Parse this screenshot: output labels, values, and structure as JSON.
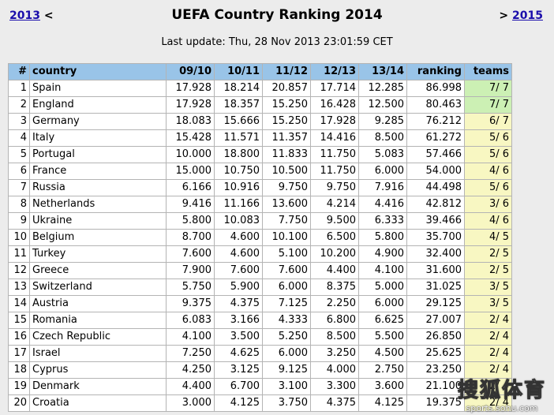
{
  "nav": {
    "prev_year": "2013",
    "prev_arrow": "<",
    "next_arrow": ">",
    "next_year": "2015"
  },
  "title": "UEFA Country Ranking 2014",
  "last_update": "Last update: Thu, 28 Nov 2013 23:01:59 CET",
  "table": {
    "headers": [
      "#",
      "country",
      "09/10",
      "10/11",
      "11/12",
      "12/13",
      "13/14",
      "ranking",
      "teams"
    ],
    "rows": [
      [
        "1",
        "Spain",
        "17.928",
        "18.214",
        "20.857",
        "17.714",
        "12.285",
        "86.998",
        "7/ 7"
      ],
      [
        "2",
        "England",
        "17.928",
        "18.357",
        "15.250",
        "16.428",
        "12.500",
        "80.463",
        "7/ 7"
      ],
      [
        "3",
        "Germany",
        "18.083",
        "15.666",
        "15.250",
        "17.928",
        "9.285",
        "76.212",
        "6/ 7"
      ],
      [
        "4",
        "Italy",
        "15.428",
        "11.571",
        "11.357",
        "14.416",
        "8.500",
        "61.272",
        "5/ 6"
      ],
      [
        "5",
        "Portugal",
        "10.000",
        "18.800",
        "11.833",
        "11.750",
        "5.083",
        "57.466",
        "5/ 6"
      ],
      [
        "6",
        "France",
        "15.000",
        "10.750",
        "10.500",
        "11.750",
        "6.000",
        "54.000",
        "4/ 6"
      ],
      [
        "7",
        "Russia",
        "6.166",
        "10.916",
        "9.750",
        "9.750",
        "7.916",
        "44.498",
        "5/ 6"
      ],
      [
        "8",
        "Netherlands",
        "9.416",
        "11.166",
        "13.600",
        "4.214",
        "4.416",
        "42.812",
        "3/ 6"
      ],
      [
        "9",
        "Ukraine",
        "5.800",
        "10.083",
        "7.750",
        "9.500",
        "6.333",
        "39.466",
        "4/ 6"
      ],
      [
        "10",
        "Belgium",
        "8.700",
        "4.600",
        "10.100",
        "6.500",
        "5.800",
        "35.700",
        "4/ 5"
      ],
      [
        "11",
        "Turkey",
        "7.600",
        "4.600",
        "5.100",
        "10.200",
        "4.900",
        "32.400",
        "2/ 5"
      ],
      [
        "12",
        "Greece",
        "7.900",
        "7.600",
        "7.600",
        "4.400",
        "4.100",
        "31.600",
        "2/ 5"
      ],
      [
        "13",
        "Switzerland",
        "5.750",
        "5.900",
        "6.000",
        "8.375",
        "5.000",
        "31.025",
        "3/ 5"
      ],
      [
        "14",
        "Austria",
        "9.375",
        "4.375",
        "7.125",
        "2.250",
        "6.000",
        "29.125",
        "3/ 5"
      ],
      [
        "15",
        "Romania",
        "6.083",
        "3.166",
        "4.333",
        "6.800",
        "6.625",
        "27.007",
        "2/ 4"
      ],
      [
        "16",
        "Czech Republic",
        "4.100",
        "3.500",
        "5.250",
        "8.500",
        "5.500",
        "26.850",
        "2/ 4"
      ],
      [
        "17",
        "Israel",
        "7.250",
        "4.625",
        "6.000",
        "3.250",
        "4.500",
        "25.625",
        "2/ 4"
      ],
      [
        "18",
        "Cyprus",
        "4.250",
        "3.125",
        "9.125",
        "4.000",
        "2.750",
        "23.250",
        "2/ 4"
      ],
      [
        "19",
        "Denmark",
        "4.400",
        "6.700",
        "3.100",
        "3.300",
        "3.600",
        "21.100",
        "2/ 4"
      ],
      [
        "20",
        "Croatia",
        "3.000",
        "4.125",
        "3.750",
        "4.375",
        "4.125",
        "19.375",
        "2/ 4"
      ]
    ],
    "full_teams_rows": [
      0,
      1
    ]
  },
  "watermark": {
    "logo": "搜狐体育",
    "url": "sports.sohu.com"
  },
  "colors": {
    "header_bg": "#99c4e8",
    "teams_full_bg": "#ccf0b4",
    "teams_partial_bg": "#f8f7c2",
    "link": "#1a0dab"
  }
}
